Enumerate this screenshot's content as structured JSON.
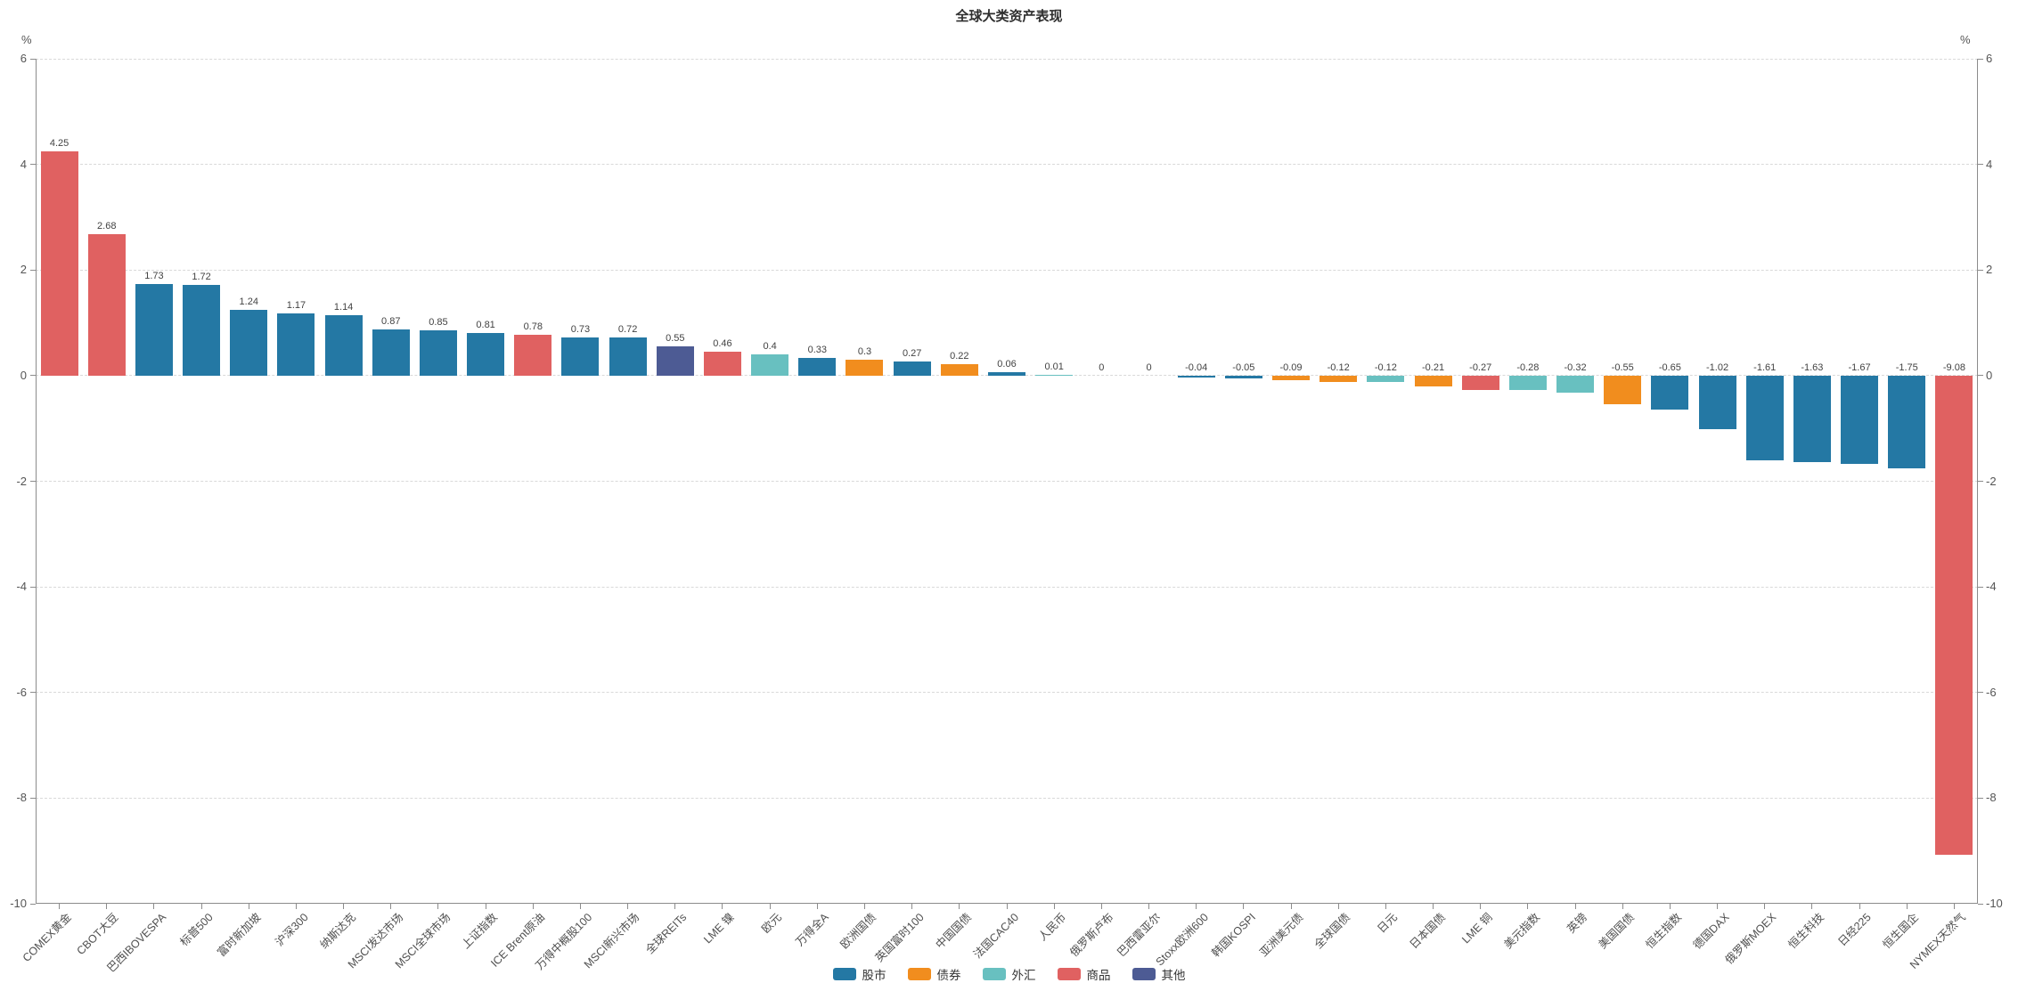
{
  "title": "全球大类资产表现",
  "axis": {
    "unit_label": "%",
    "ticks": [
      6,
      4,
      2,
      0,
      -2,
      -4,
      -6,
      -8,
      -10
    ],
    "min": -10,
    "max": 6
  },
  "legend": [
    {
      "key": "stocks",
      "label": "股市",
      "color": "#2478a4"
    },
    {
      "key": "bonds",
      "label": "债券",
      "color": "#f18d1e"
    },
    {
      "key": "fx",
      "label": "外汇",
      "color": "#68c0c0"
    },
    {
      "key": "commodities",
      "label": "商品",
      "color": "#e06161"
    },
    {
      "key": "other",
      "label": "其他",
      "color": "#4d5b94"
    }
  ],
  "chart_data": {
    "type": "bar",
    "title": "全球大类资产表现",
    "xlabel": "",
    "ylabel": "%",
    "ylim": [
      -10,
      6
    ],
    "grid": "horizontal-dashed",
    "legend_position": "bottom-center",
    "categories": [
      "COMEX黄金",
      "CBOT大豆",
      "巴西IBOVESPA",
      "标普500",
      "富时新加坡",
      "沪深300",
      "纳斯达克",
      "MSCI发达市场",
      "MSCI全球市场",
      "上证指数",
      "ICE Brent原油",
      "万得中概股100",
      "MSCI新兴市场",
      "全球REITs",
      "LME 镍",
      "欧元",
      "万得全A",
      "欧洲国债",
      "英国富时100",
      "中国国债",
      "法国CAC40",
      "人民币",
      "俄罗斯卢布",
      "巴西雷亚尔",
      "Stoxx欧洲600",
      "韩国KOSPI",
      "亚洲美元债",
      "全球国债",
      "日元",
      "日本国债",
      "LME 铜",
      "美元指数",
      "英镑",
      "美国国债",
      "恒生指数",
      "德国DAX",
      "俄罗斯MOEX",
      "恒生科技",
      "日经225",
      "恒生国企",
      "NYMEX天然气"
    ],
    "values": [
      4.25,
      2.68,
      1.73,
      1.72,
      1.24,
      1.17,
      1.14,
      0.87,
      0.85,
      0.81,
      0.78,
      0.73,
      0.72,
      0.55,
      0.46,
      0.4,
      0.33,
      0.3,
      0.27,
      0.22,
      0.06,
      0.01,
      0,
      0,
      -0.04,
      -0.05,
      -0.09,
      -0.12,
      -0.12,
      -0.21,
      -0.27,
      -0.28,
      -0.32,
      -0.55,
      -0.65,
      -1.02,
      -1.61,
      -1.63,
      -1.67,
      -1.75,
      -9.08
    ],
    "value_labels": [
      "4.25",
      "2.68",
      "1.73",
      "1.72",
      "1.24",
      "1.17",
      "1.14",
      "0.87",
      "0.85",
      "0.81",
      "0.78",
      "0.73",
      "0.72",
      "0.55",
      "0.46",
      "0.4",
      "0.33",
      "0.3",
      "0.27",
      "0.22",
      "0.06",
      "0.01",
      "0",
      "0",
      "-0.04",
      "-0.05",
      "-0.09",
      "-0.12",
      "-0.12",
      "-0.21",
      "-0.27",
      "-0.28",
      "-0.32",
      "-0.55",
      "-0.65",
      "-1.02",
      "-1.61",
      "-1.63",
      "-1.67",
      "-1.75",
      "-9.08"
    ],
    "groups": [
      "商品",
      "商品",
      "股市",
      "股市",
      "股市",
      "股市",
      "股市",
      "股市",
      "股市",
      "股市",
      "商品",
      "股市",
      "股市",
      "其他",
      "商品",
      "外汇",
      "股市",
      "债券",
      "股市",
      "债券",
      "股市",
      "外汇",
      "外汇",
      "外汇",
      "股市",
      "股市",
      "债券",
      "债券",
      "外汇",
      "债券",
      "商品",
      "外汇",
      "外汇",
      "债券",
      "股市",
      "股市",
      "股市",
      "股市",
      "股市",
      "股市",
      "商品"
    ],
    "group_colors": {
      "股市": "#2478a4",
      "债券": "#f18d1e",
      "外汇": "#68c0c0",
      "商品": "#e06161",
      "其他": "#4d5b94"
    }
  }
}
